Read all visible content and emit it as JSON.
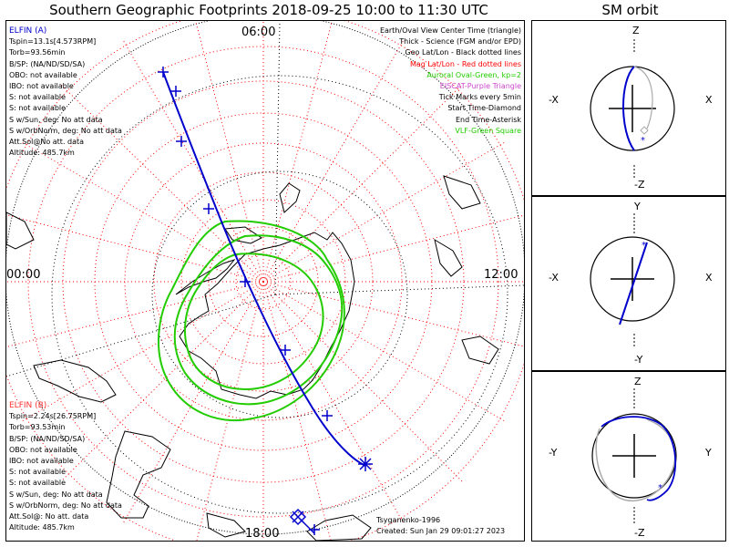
{
  "title": "Southern Geographic Footprints 2018-09-25 10:00 to 11:30 UTC",
  "orbit_title": "SM orbit",
  "hour_labels": {
    "top": "06:00",
    "left": "00:00",
    "right": "12:00",
    "bottom": "18:00"
  },
  "elfin_a": {
    "title": "ELFIN (A)",
    "lines": [
      "Tspin=13.1s[4.573RPM]",
      "Torb=93.56min",
      "B/SP: (NA/ND/SD/SA)",
      "OBO: not available",
      "IBO: not available",
      "S: not available",
      "S: not available",
      "S w/Sun, deg: No att data",
      "S w/OrbNorm, deg: No att data",
      "Att.Sol@No att. data",
      "Altitude: 485.7km"
    ]
  },
  "elfin_b": {
    "title": "ELFIN (B)",
    "lines": [
      "Tspin=2.24s[26.75RPM]",
      "Torb=93.53min",
      "B/SP: (NA/ND/SD/SA)",
      "OBO: not available",
      "IBO: not available",
      "S: not available",
      "S: not available",
      "S w/Sun, deg: No att data",
      "S w/OrbNorm, deg: No att data",
      "Att.Sol@: No att. data",
      "Altitude: 485.7km"
    ]
  },
  "legend": [
    {
      "text": "Earth/Oval View Center Time (triangle)",
      "color": "#000000"
    },
    {
      "text": "Thick - Science (FGM and/or EPD)",
      "color": "#000000"
    },
    {
      "text": "Geo Lat/Lon - Black dotted lines",
      "color": "#000000"
    },
    {
      "text": "Mag Lat/Lon - Red dotted lines",
      "color": "#ff0000"
    },
    {
      "text": "Auroral Oval-Green, kp=2",
      "color": "#22cc00"
    },
    {
      "text": "EISCAT-Purple Triangle",
      "color": "#cc44cc"
    },
    {
      "text": "Tick Marks every 5min",
      "color": "#000000"
    },
    {
      "text": "Start Time-Diamond",
      "color": "#000000"
    },
    {
      "text": "End Time-Asterisk",
      "color": "#000000"
    },
    {
      "text": "VLF-Green Square",
      "color": "#22cc00"
    }
  ],
  "footer": {
    "model": "Tsyganenko-1996",
    "created": "Created: Sun Jan 29 09:01:27 2023"
  },
  "panels": {
    "xz": {
      "top": "Z",
      "bottom": "-Z",
      "left": "-X",
      "right": "X"
    },
    "xy": {
      "top": "Y",
      "bottom": "-Y",
      "left": "-X",
      "right": "X"
    },
    "yz": {
      "top": "Z",
      "bottom": "-Z",
      "left": "-Y",
      "right": "Y"
    }
  },
  "colors": {
    "orbit": "#0000cc",
    "mag_grid": "#ff0000",
    "geo_grid": "#000000",
    "oval": "#22cc00",
    "orbit_b": "#aaaaaa"
  }
}
